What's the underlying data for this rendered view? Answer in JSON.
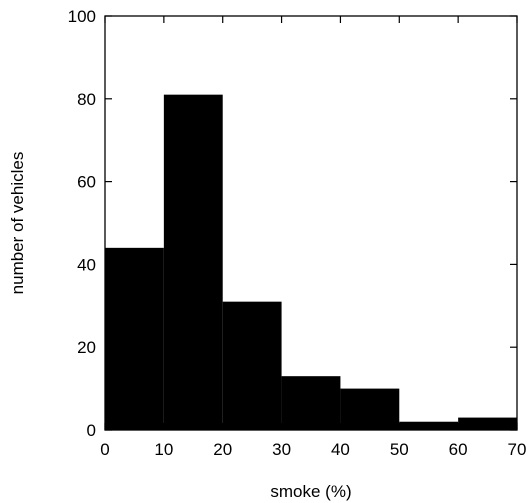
{
  "chart_data": {
    "type": "bar",
    "title": "",
    "xlabel": "smoke (%)",
    "ylabel": "number of vehicles",
    "bin_edges": [
      0,
      10,
      20,
      30,
      40,
      50,
      60,
      70
    ],
    "values": [
      44,
      81,
      31,
      13,
      10,
      2,
      3
    ],
    "xlim": [
      0,
      70
    ],
    "ylim": [
      0,
      100
    ],
    "x_ticks": [
      0,
      10,
      20,
      30,
      40,
      50,
      60,
      70
    ],
    "y_ticks": [
      0,
      20,
      40,
      60,
      80,
      100
    ],
    "grid": false,
    "legend": "none",
    "bar_color": "#000000"
  }
}
